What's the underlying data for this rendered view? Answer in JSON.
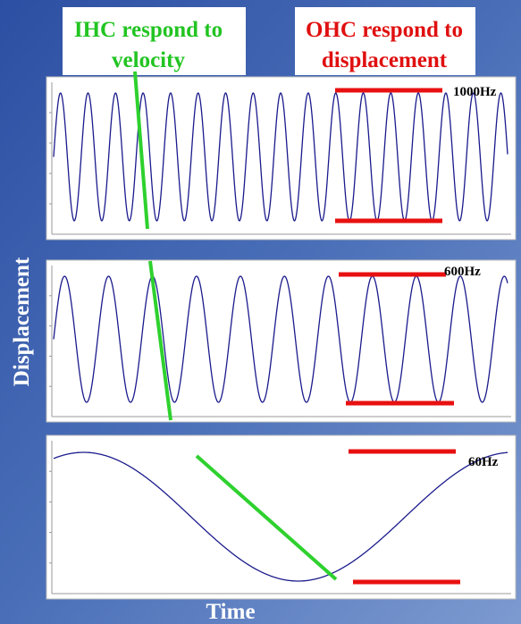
{
  "title_left": {
    "lines": [
      "IHC respond to",
      "velocity"
    ]
  },
  "title_right": {
    "lines": [
      "OHC respond to",
      "displacement"
    ]
  },
  "panels": [
    {
      "frequency_label": "1000Hz"
    },
    {
      "frequency_label": "600Hz"
    },
    {
      "frequency_label": "60Hz"
    }
  ],
  "y_axis_label": "Displacement",
  "x_axis_label": "Time"
}
